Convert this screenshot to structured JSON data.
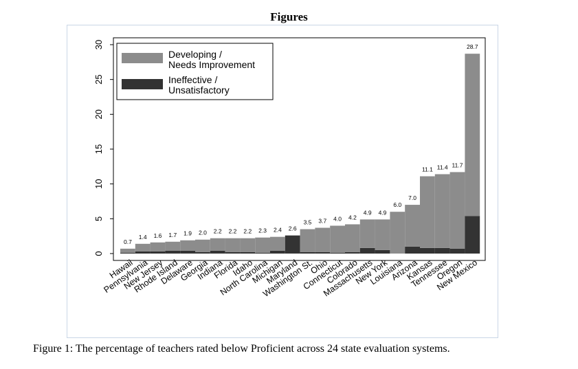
{
  "page": {
    "heading": "Figures",
    "caption": "Figure 1: The percentage of teachers rated below Proficient across 24 state evaluation systems."
  },
  "chart_data": {
    "type": "bar",
    "stacked": true,
    "title": "",
    "xlabel": "",
    "ylabel": "",
    "ylim": [
      0,
      30
    ],
    "yticks": [
      0,
      5,
      10,
      15,
      20,
      25,
      30
    ],
    "grid": false,
    "legend_position": "top-left",
    "categories": [
      "Hawaii",
      "Pennsylvania",
      "New Jersey",
      "Rhode Island",
      "Delaware",
      "Georgia",
      "Indiana",
      "Florida",
      "Idaho",
      "North Carolina",
      "Michigan",
      "Maryland",
      "Washington St.",
      "Ohio",
      "Connecticut",
      "Colorado",
      "Massachusetts",
      "New York",
      "Louisiana",
      "Arizona",
      "Kansas",
      "Tennessee",
      "Oregon",
      "New Mexico"
    ],
    "totals": [
      0.7,
      1.4,
      1.6,
      1.7,
      1.9,
      2.0,
      2.2,
      2.2,
      2.2,
      2.3,
      2.4,
      2.6,
      3.5,
      3.7,
      4.0,
      4.2,
      4.9,
      4.9,
      6.0,
      7.0,
      11.1,
      11.4,
      11.7,
      28.7
    ],
    "total_labels": [
      "0.7",
      "1.4",
      "1.6",
      "1.7",
      "1.9",
      "2.0",
      "2.2",
      "2.2",
      "2.2",
      "2.3",
      "2.4",
      "2.6",
      "3.5",
      "3.7",
      "4.0",
      "4.2",
      "4.9",
      "4.9",
      "6.0",
      "7.0",
      "11.1",
      "11.4",
      "11.7",
      "28.7"
    ],
    "series": [
      {
        "name": "Developing / Needs Improvement",
        "legend_lines": [
          "Developing /",
          "Needs Improvement"
        ],
        "color": "#8c8c8c",
        "values": [
          0.6,
          1.1,
          1.3,
          1.3,
          1.5,
          1.8,
          1.8,
          2.0,
          2.0,
          2.2,
          2.0,
          0.0,
          3.3,
          3.5,
          3.9,
          4.0,
          4.1,
          4.4,
          6.0,
          6.0,
          10.3,
          10.6,
          11.0,
          23.3
        ]
      },
      {
        "name": "Ineffective / Unsatisfactory",
        "legend_lines": [
          "Ineffective /",
          "Unsatisfactory"
        ],
        "color": "#333333",
        "values": [
          0.1,
          0.3,
          0.3,
          0.4,
          0.4,
          0.2,
          0.4,
          0.2,
          0.2,
          0.1,
          0.4,
          2.6,
          0.2,
          0.2,
          0.1,
          0.2,
          0.8,
          0.5,
          0.0,
          1.0,
          0.8,
          0.8,
          0.7,
          5.4
        ]
      }
    ]
  }
}
